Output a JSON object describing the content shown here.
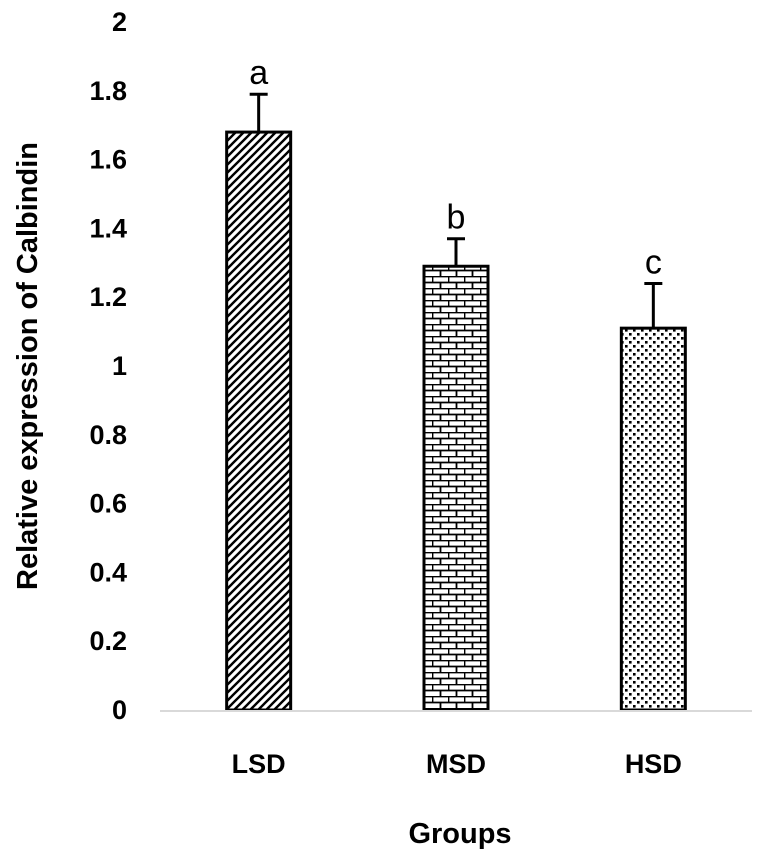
{
  "chart_data": {
    "type": "bar",
    "categories": [
      "LSD",
      "MSD",
      "HSD"
    ],
    "values": [
      1.68,
      1.29,
      1.11
    ],
    "errors": [
      0.11,
      0.08,
      0.13
    ],
    "significance_labels": [
      "a",
      "b",
      "c"
    ],
    "fill_patterns": [
      "diagonal-stripes",
      "bricks",
      "dots"
    ],
    "xlabel": "Groups",
    "ylabel": "Relative expression of Calbindin",
    "ylim": [
      0,
      2
    ],
    "yticks": [
      0,
      0.2,
      0.4,
      0.6,
      0.8,
      1,
      1.2,
      1.4,
      1.6,
      1.8,
      2
    ],
    "ytick_labels": [
      "0",
      "0.2",
      "0.4",
      "0.6",
      "0.8",
      "1",
      "1.2",
      "1.4",
      "1.6",
      "1.8",
      "2"
    ],
    "grid": false,
    "legend": "none",
    "colors": {
      "bar_fill": "#ffffff",
      "bar_stroke": "#000000",
      "axis": "#d9d9d9",
      "text": "#000000"
    }
  }
}
